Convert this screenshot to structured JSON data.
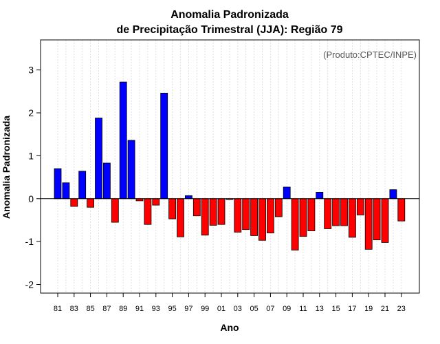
{
  "chart_data": {
    "type": "bar",
    "title_line1": "Anomalia Padronizada",
    "title_line2": "de Precipitação Trimestral (JJA): Região 79",
    "xlabel": "Ano",
    "ylabel": "Anomalia Padronizada",
    "annotation": "(Produto:CPTEC/INPE)",
    "ylim": [
      -2.2,
      3.7
    ],
    "yticks": [
      -2,
      -1,
      0,
      1,
      2,
      3
    ],
    "ytick_labels": [
      "-2",
      "-1",
      "0",
      "1",
      "2",
      "3"
    ],
    "categories": [
      "81",
      "82",
      "83",
      "84",
      "85",
      "86",
      "87",
      "88",
      "89",
      "90",
      "91",
      "92",
      "93",
      "94",
      "95",
      "96",
      "97",
      "98",
      "99",
      "00",
      "01",
      "02",
      "03",
      "04",
      "05",
      "06",
      "07",
      "08",
      "09",
      "10",
      "11",
      "12",
      "13",
      "14",
      "15",
      "16",
      "17",
      "18",
      "19",
      "20",
      "21",
      "22",
      "23"
    ],
    "values": [
      0.7,
      0.37,
      -0.18,
      0.64,
      -0.2,
      1.88,
      0.83,
      -0.55,
      2.72,
      1.36,
      -0.05,
      -0.6,
      -0.15,
      2.46,
      -0.47,
      -0.89,
      0.07,
      -0.4,
      -0.85,
      -0.62,
      -0.6,
      -0.02,
      -0.78,
      -0.72,
      -0.86,
      -0.97,
      -0.8,
      -0.42,
      0.27,
      -1.2,
      -0.88,
      -0.75,
      0.15,
      -0.7,
      -0.63,
      -0.63,
      -0.9,
      -0.38,
      -1.18,
      -0.96,
      -1.02,
      0.21,
      -0.52
    ],
    "xtick_labels": [
      "81",
      "83",
      "85",
      "87",
      "89",
      "91",
      "93",
      "95",
      "97",
      "99",
      "01",
      "03",
      "05",
      "07",
      "09",
      "11",
      "13",
      "15",
      "17",
      "19",
      "21",
      "23"
    ],
    "colors": {
      "positive": "#0000ff",
      "negative": "#ff0000",
      "gridline": "#d8d8d8",
      "zero_line": "#000000"
    },
    "grid": true
  }
}
